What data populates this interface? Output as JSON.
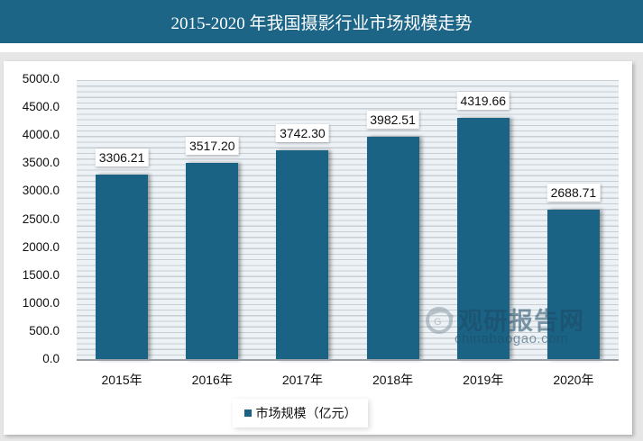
{
  "header": {
    "title": "2015-2020 年我国摄影行业市场规模走势"
  },
  "colors": {
    "title_bg": "#1d6587",
    "bar": "#1b6384"
  },
  "watermark": {
    "cn": "观研报告网",
    "en": "chinabaogao.com"
  },
  "legend": {
    "label": "市场规模（亿元）"
  },
  "chart_data": {
    "type": "bar",
    "title": "2015-2020 年我国摄影行业市场规模走势",
    "xlabel": "",
    "ylabel": "",
    "categories": [
      "2015年",
      "2016年",
      "2017年",
      "2018年",
      "2019年",
      "2020年"
    ],
    "series": [
      {
        "name": "市场规模（亿元）",
        "values": [
          3306.21,
          3517.2,
          3742.3,
          3982.51,
          4319.66,
          2688.71
        ]
      }
    ],
    "value_labels": [
      "3306.21",
      "3517.20",
      "3742.30",
      "3982.51",
      "4319.66",
      "2688.71"
    ],
    "ylim": [
      0,
      5000
    ],
    "yticks": [
      "0.0",
      "500.0",
      "1000.0",
      "1500.0",
      "2000.0",
      "2500.0",
      "3000.0",
      "3500.0",
      "4000.0",
      "4500.0",
      "5000.0"
    ],
    "grid": true,
    "legend_position": "bottom"
  }
}
